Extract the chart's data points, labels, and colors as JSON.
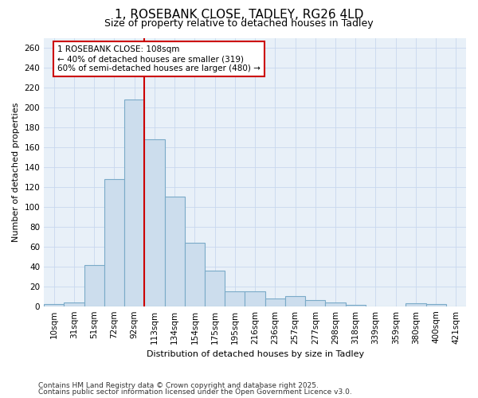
{
  "title1": "1, ROSEBANK CLOSE, TADLEY, RG26 4LD",
  "title2": "Size of property relative to detached houses in Tadley",
  "xlabel": "Distribution of detached houses by size in Tadley",
  "ylabel": "Number of detached properties",
  "categories": [
    "10sqm",
    "31sqm",
    "51sqm",
    "72sqm",
    "92sqm",
    "113sqm",
    "134sqm",
    "154sqm",
    "175sqm",
    "195sqm",
    "216sqm",
    "236sqm",
    "257sqm",
    "277sqm",
    "298sqm",
    "318sqm",
    "339sqm",
    "359sqm",
    "380sqm",
    "400sqm",
    "421sqm"
  ],
  "values": [
    2,
    4,
    41,
    128,
    208,
    168,
    110,
    64,
    36,
    15,
    15,
    8,
    10,
    6,
    4,
    1,
    0,
    0,
    3,
    2,
    0
  ],
  "bar_color": "#ccdded",
  "bar_edge_color": "#7aaac8",
  "bar_linewidth": 0.8,
  "vline_x": 4.5,
  "vline_color": "#cc0000",
  "annotation_text": "1 ROSEBANK CLOSE: 108sqm\n← 40% of detached houses are smaller (319)\n60% of semi-detached houses are larger (480) →",
  "grid_color": "#c8d8ee",
  "background_color": "#e8f0f8",
  "footer1": "Contains HM Land Registry data © Crown copyright and database right 2025.",
  "footer2": "Contains public sector information licensed under the Open Government Licence v3.0.",
  "ylim": [
    0,
    270
  ],
  "yticks": [
    0,
    20,
    40,
    60,
    80,
    100,
    120,
    140,
    160,
    180,
    200,
    220,
    240,
    260
  ],
  "title_fontsize": 11,
  "subtitle_fontsize": 9,
  "label_fontsize": 8,
  "tick_fontsize": 7.5,
  "footer_fontsize": 6.5,
  "ann_fontsize": 7.5
}
